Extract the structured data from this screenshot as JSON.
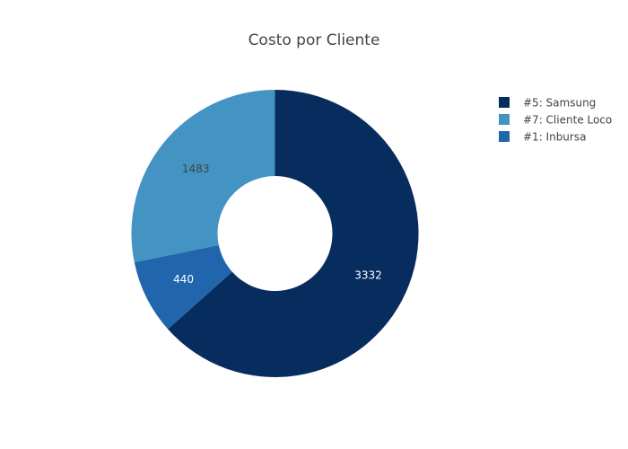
{
  "chart_data": {
    "type": "pie",
    "hole": 0.4,
    "title": "Costo por Cliente",
    "slices": [
      {
        "label": "#5: Samsung",
        "value": 3332,
        "color": "#072d5f",
        "text_color": "#ffffff"
      },
      {
        "label": "#1: Inbursa",
        "value": 440,
        "color": "#2166ac",
        "text_color": "#ffffff"
      },
      {
        "label": "#7: Cliente Loco",
        "value": 1483,
        "color": "#4393c3",
        "text_color": "#444444"
      }
    ],
    "legend_order": [
      "#5: Samsung",
      "#7: Cliente Loco",
      "#1: Inbursa"
    ],
    "legend_placement": "top-right",
    "direction": "clockwise",
    "start": "top"
  }
}
